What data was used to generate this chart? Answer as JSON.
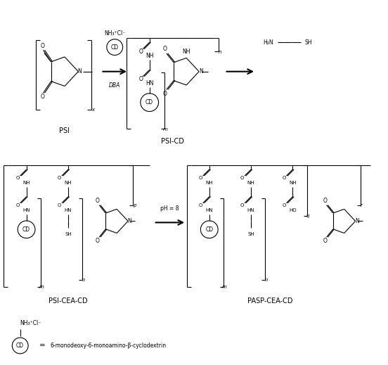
{
  "background_color": "#ffffff",
  "figsize": [
    5.52,
    5.19
  ],
  "dpi": 100,
  "cd_label": "CD",
  "legend_cd_text": "6-monodeoxy-6-monoamino-β-cyclodextrin",
  "psi_label": "PSI",
  "psicd_label": "PSI-CD",
  "psi_cea_cd_label": "PSI-CEA-CD",
  "pasp_cea_cd_label": "PASP-CEA-CD"
}
